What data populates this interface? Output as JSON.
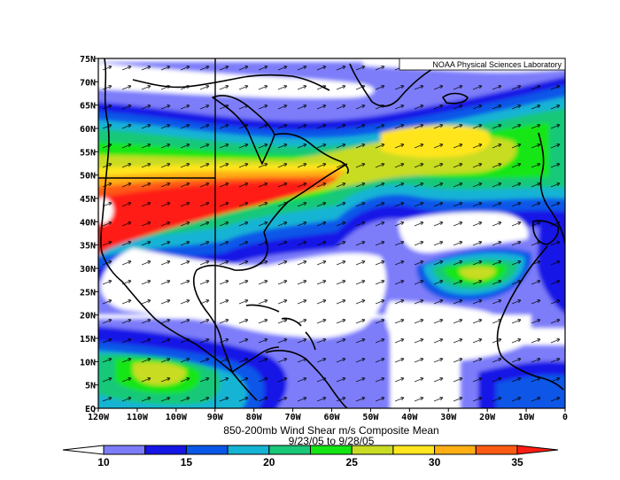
{
  "map": {
    "credit": "NOAA Physical Sciences Laboratory",
    "title_line1": "850-200mb Wind Shear m/s Composite Mean",
    "title_line2": "9/23/05 to 9/28/05",
    "lat_labels": [
      "EQ",
      "5N",
      "10N",
      "15N",
      "20N",
      "25N",
      "30N",
      "35N",
      "40N",
      "45N",
      "50N",
      "55N",
      "60N",
      "65N",
      "70N",
      "75N"
    ],
    "lon_labels": [
      "120W",
      "110W",
      "100W",
      "90W",
      "80W",
      "70W",
      "60W",
      "50W",
      "40W",
      "30W",
      "20W",
      "10W",
      "0"
    ],
    "extent": {
      "lon_min": -120,
      "lon_max": 0,
      "lat_min": 0,
      "lat_max": 75
    },
    "reference_lines": [
      {
        "type": "meridian",
        "lon": -90
      },
      {
        "type": "parallel",
        "lat": 49,
        "lon_from": -120,
        "lon_to": -90
      }
    ]
  },
  "colorbar": {
    "levels": [
      10,
      12.5,
      15,
      17.5,
      20,
      22.5,
      25,
      27.5,
      30,
      32.5,
      35
    ],
    "labels": [
      "10",
      "15",
      "20",
      "25",
      "30",
      "35"
    ],
    "colors": [
      "#ffffff",
      "#7d7dfa",
      "#1616e6",
      "#0a57e8",
      "#15b4d4",
      "#19c878",
      "#14e614",
      "#c8dc23",
      "#ffe61e",
      "#ffaf14",
      "#ff5a14",
      "#ff1e14"
    ]
  }
}
